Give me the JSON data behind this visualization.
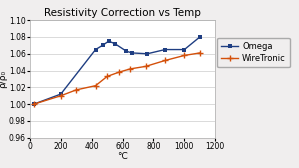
{
  "title": "Resistivity Correction vs Temp",
  "xlabel": "°C",
  "ylabel": "ρ/ρ₀",
  "xlim": [
    0,
    1200
  ],
  "ylim": [
    0.96,
    1.1
  ],
  "yticks": [
    0.96,
    0.98,
    1.0,
    1.02,
    1.04,
    1.06,
    1.08,
    1.1
  ],
  "xticks": [
    0,
    200,
    400,
    600,
    800,
    1000,
    1200
  ],
  "omega_x": [
    25,
    200,
    425,
    470,
    510,
    550,
    625,
    660,
    760,
    875,
    1000,
    1100
  ],
  "omega_y": [
    1.0,
    1.012,
    1.065,
    1.07,
    1.075,
    1.072,
    1.063,
    1.061,
    1.06,
    1.065,
    1.065,
    1.08
  ],
  "wiretronic_x": [
    25,
    200,
    300,
    425,
    500,
    575,
    650,
    750,
    875,
    1000,
    1100
  ],
  "wiretronic_y": [
    1.0,
    1.01,
    1.017,
    1.022,
    1.033,
    1.038,
    1.042,
    1.045,
    1.052,
    1.058,
    1.061
  ],
  "omega_color": "#1F3E82",
  "wiretronic_color": "#D4500A",
  "bg_color": "#F0EEEE",
  "plot_bg_color": "#FFFFFF",
  "grid_color": "#CCCCCC",
  "legend_labels": [
    "Omega",
    "WireTronic"
  ],
  "title_fontsize": 7.5,
  "axis_fontsize": 6.5,
  "tick_fontsize": 5.5,
  "legend_fontsize": 6
}
